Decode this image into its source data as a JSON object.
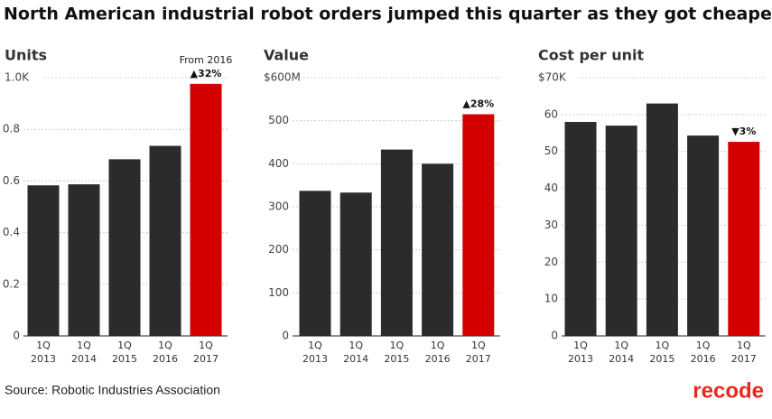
{
  "title": "North American industrial robot orders jumped this quarter as they got cheaper",
  "source": "Source: Robotic Industries Association",
  "logo": "recode",
  "chart_data": [
    {
      "type": "bar",
      "title": "Units",
      "categories": [
        [
          "1Q",
          "2013"
        ],
        [
          "1Q",
          "2014"
        ],
        [
          "1Q",
          "2015"
        ],
        [
          "1Q",
          "2016"
        ],
        [
          "1Q",
          "2017"
        ]
      ],
      "values": [
        0.583,
        0.587,
        0.684,
        0.736,
        0.976
      ],
      "colors": [
        "#2b2b2b",
        "#2b2b2b",
        "#2b2b2b",
        "#2b2b2b",
        "#d40000"
      ],
      "ylim": [
        0,
        1
      ],
      "yticks": [
        0,
        0.2,
        0.4,
        0.6,
        0.8,
        {
          "value": 1,
          "label": "1.0K"
        }
      ],
      "grid": true,
      "annotation_note": "From 2016",
      "annotation": "▲32%"
    },
    {
      "type": "bar",
      "title": "Value",
      "categories": [
        [
          "1Q",
          "2013"
        ],
        [
          "1Q",
          "2014"
        ],
        [
          "1Q",
          "2015"
        ],
        [
          "1Q",
          "2016"
        ],
        [
          "1Q",
          "2017"
        ]
      ],
      "values": [
        337,
        333,
        433,
        400,
        515
      ],
      "colors": [
        "#2b2b2b",
        "#2b2b2b",
        "#2b2b2b",
        "#2b2b2b",
        "#d40000"
      ],
      "ylim": [
        0,
        600
      ],
      "yticks": [
        0,
        100,
        200,
        300,
        400,
        500,
        {
          "value": 600,
          "label": "$600M"
        }
      ],
      "grid": true,
      "annotation": "▲28%"
    },
    {
      "type": "bar",
      "title": "Cost per unit",
      "categories": [
        [
          "1Q",
          "2013"
        ],
        [
          "1Q",
          "2014"
        ],
        [
          "1Q",
          "2015"
        ],
        [
          "1Q",
          "2016"
        ],
        [
          "1Q",
          "2017"
        ]
      ],
      "values": [
        58,
        57,
        63,
        54.3,
        52.6
      ],
      "colors": [
        "#2b2b2b",
        "#2b2b2b",
        "#2b2b2b",
        "#2b2b2b",
        "#d40000"
      ],
      "ylim": [
        0,
        70
      ],
      "yticks": [
        0,
        10,
        20,
        30,
        40,
        50,
        60,
        {
          "value": 70,
          "label": "$70K"
        }
      ],
      "grid": true,
      "annotation": "▼3%"
    }
  ]
}
